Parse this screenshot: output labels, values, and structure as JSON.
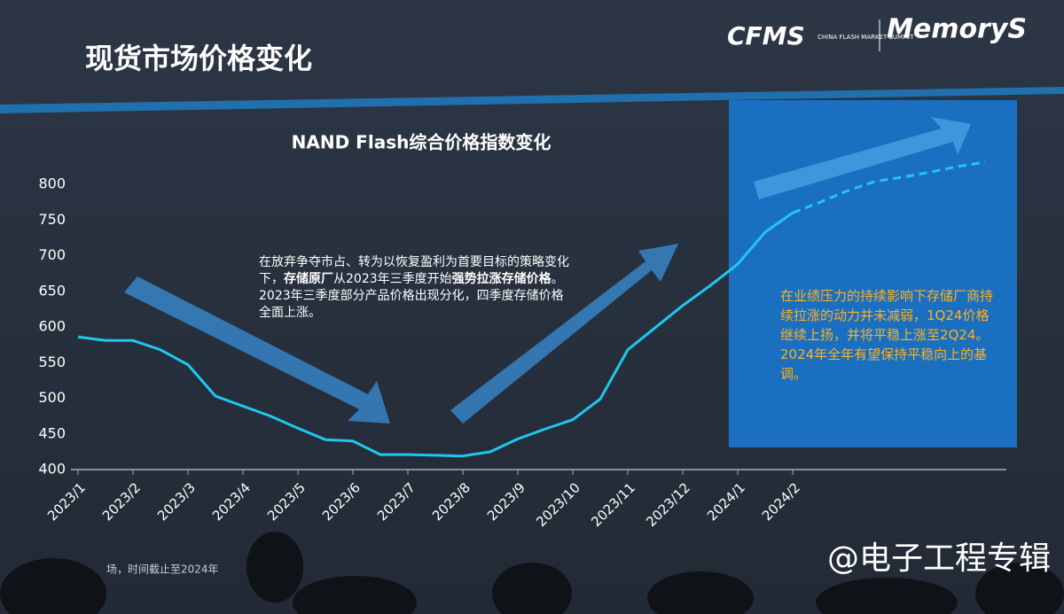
{
  "header": {
    "title": "现货市场价格变化",
    "logo_cfms": "CFMS",
    "logo_cfms_sub": "CHINA FLASH MARKET SUMMIT",
    "logo_memorys": "MemoryS"
  },
  "chart_data": {
    "type": "line",
    "title": "NAND Flash综合价格指数变化",
    "categories": [
      "2023/1",
      null,
      "2023/2",
      null,
      "2023/3",
      null,
      "2023/4",
      null,
      "2023/5",
      null,
      "2023/6",
      null,
      "2023/7",
      null,
      "2023/8",
      null,
      "2023/9",
      null,
      "2023/10",
      null,
      "2023/11",
      null,
      "2023/12",
      null,
      "2024/1",
      null,
      "2024/2",
      null,
      null,
      null,
      null,
      null,
      null,
      null
    ],
    "series": [
      {
        "color": "#1ec8f0",
        "dashed": false,
        "values": [
          586,
          581,
          581,
          568,
          547,
          503,
          489,
          475,
          458,
          442,
          440,
          421,
          421,
          420,
          419,
          425,
          443,
          457,
          470,
          499,
          568,
          599,
          630,
          658,
          688,
          733,
          760,
          null,
          null,
          null,
          null,
          null,
          null,
          null
        ]
      },
      {
        "color": "#1ec8f0",
        "dashed": true,
        "values": [
          null,
          null,
          null,
          null,
          null,
          null,
          null,
          null,
          null,
          null,
          null,
          null,
          null,
          null,
          null,
          null,
          null,
          null,
          null,
          null,
          null,
          null,
          null,
          null,
          null,
          null,
          760,
          775,
          791,
          804,
          810,
          817,
          825,
          831
        ]
      }
    ],
    "ylim": [
      400,
      800
    ],
    "yticks": [
      400,
      450,
      500,
      550,
      600,
      650,
      700,
      750,
      800
    ],
    "grid": false
  },
  "annotations": {
    "left": [
      {
        "text": "在放弃争夺市占、转为以恢复盈利为首要目标的策略变化下，",
        "bold": false
      },
      {
        "text": "存储原厂",
        "bold": true
      },
      {
        "text": "从2023年三季度开始",
        "bold": false
      },
      {
        "text": "强势拉涨存储价格",
        "bold": true
      },
      {
        "text": "。2023年三季度部分产品价格出现分化，四季度存储价格全面上涨。",
        "bold": false
      }
    ],
    "right": "在业绩压力的持续影响下存储厂商持续拉涨的动力并未减弱，1Q24价格继续上扬，并将平稳上涨至2Q24。2024年全年有望保持平稳向上的基调。"
  },
  "footnote": "场，时间截止至2024年",
  "watermark": "@电子工程专辑"
}
